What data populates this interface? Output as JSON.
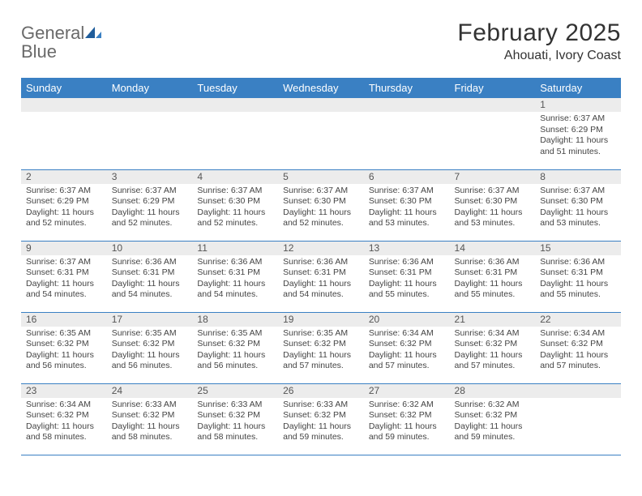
{
  "logo": {
    "word1": "General",
    "word2": "Blue"
  },
  "title": "February 2025",
  "location": "Ahouati, Ivory Coast",
  "colors": {
    "header_bg": "#3a80c3",
    "header_text": "#ffffff",
    "daynum_bg": "#ececec",
    "border": "#3a80c3",
    "logo_gray": "#6a6a6a",
    "logo_blue": "#2f6fb0"
  },
  "daysOfWeek": [
    "Sunday",
    "Monday",
    "Tuesday",
    "Wednesday",
    "Thursday",
    "Friday",
    "Saturday"
  ],
  "weeks": [
    [
      {
        "num": "",
        "text": ""
      },
      {
        "num": "",
        "text": ""
      },
      {
        "num": "",
        "text": ""
      },
      {
        "num": "",
        "text": ""
      },
      {
        "num": "",
        "text": ""
      },
      {
        "num": "",
        "text": ""
      },
      {
        "num": "1",
        "text": "Sunrise: 6:37 AM\nSunset: 6:29 PM\nDaylight: 11 hours and 51 minutes."
      }
    ],
    [
      {
        "num": "2",
        "text": "Sunrise: 6:37 AM\nSunset: 6:29 PM\nDaylight: 11 hours and 52 minutes."
      },
      {
        "num": "3",
        "text": "Sunrise: 6:37 AM\nSunset: 6:29 PM\nDaylight: 11 hours and 52 minutes."
      },
      {
        "num": "4",
        "text": "Sunrise: 6:37 AM\nSunset: 6:30 PM\nDaylight: 11 hours and 52 minutes."
      },
      {
        "num": "5",
        "text": "Sunrise: 6:37 AM\nSunset: 6:30 PM\nDaylight: 11 hours and 52 minutes."
      },
      {
        "num": "6",
        "text": "Sunrise: 6:37 AM\nSunset: 6:30 PM\nDaylight: 11 hours and 53 minutes."
      },
      {
        "num": "7",
        "text": "Sunrise: 6:37 AM\nSunset: 6:30 PM\nDaylight: 11 hours and 53 minutes."
      },
      {
        "num": "8",
        "text": "Sunrise: 6:37 AM\nSunset: 6:30 PM\nDaylight: 11 hours and 53 minutes."
      }
    ],
    [
      {
        "num": "9",
        "text": "Sunrise: 6:37 AM\nSunset: 6:31 PM\nDaylight: 11 hours and 54 minutes."
      },
      {
        "num": "10",
        "text": "Sunrise: 6:36 AM\nSunset: 6:31 PM\nDaylight: 11 hours and 54 minutes."
      },
      {
        "num": "11",
        "text": "Sunrise: 6:36 AM\nSunset: 6:31 PM\nDaylight: 11 hours and 54 minutes."
      },
      {
        "num": "12",
        "text": "Sunrise: 6:36 AM\nSunset: 6:31 PM\nDaylight: 11 hours and 54 minutes."
      },
      {
        "num": "13",
        "text": "Sunrise: 6:36 AM\nSunset: 6:31 PM\nDaylight: 11 hours and 55 minutes."
      },
      {
        "num": "14",
        "text": "Sunrise: 6:36 AM\nSunset: 6:31 PM\nDaylight: 11 hours and 55 minutes."
      },
      {
        "num": "15",
        "text": "Sunrise: 6:36 AM\nSunset: 6:31 PM\nDaylight: 11 hours and 55 minutes."
      }
    ],
    [
      {
        "num": "16",
        "text": "Sunrise: 6:35 AM\nSunset: 6:32 PM\nDaylight: 11 hours and 56 minutes."
      },
      {
        "num": "17",
        "text": "Sunrise: 6:35 AM\nSunset: 6:32 PM\nDaylight: 11 hours and 56 minutes."
      },
      {
        "num": "18",
        "text": "Sunrise: 6:35 AM\nSunset: 6:32 PM\nDaylight: 11 hours and 56 minutes."
      },
      {
        "num": "19",
        "text": "Sunrise: 6:35 AM\nSunset: 6:32 PM\nDaylight: 11 hours and 57 minutes."
      },
      {
        "num": "20",
        "text": "Sunrise: 6:34 AM\nSunset: 6:32 PM\nDaylight: 11 hours and 57 minutes."
      },
      {
        "num": "21",
        "text": "Sunrise: 6:34 AM\nSunset: 6:32 PM\nDaylight: 11 hours and 57 minutes."
      },
      {
        "num": "22",
        "text": "Sunrise: 6:34 AM\nSunset: 6:32 PM\nDaylight: 11 hours and 57 minutes."
      }
    ],
    [
      {
        "num": "23",
        "text": "Sunrise: 6:34 AM\nSunset: 6:32 PM\nDaylight: 11 hours and 58 minutes."
      },
      {
        "num": "24",
        "text": "Sunrise: 6:33 AM\nSunset: 6:32 PM\nDaylight: 11 hours and 58 minutes."
      },
      {
        "num": "25",
        "text": "Sunrise: 6:33 AM\nSunset: 6:32 PM\nDaylight: 11 hours and 58 minutes."
      },
      {
        "num": "26",
        "text": "Sunrise: 6:33 AM\nSunset: 6:32 PM\nDaylight: 11 hours and 59 minutes."
      },
      {
        "num": "27",
        "text": "Sunrise: 6:32 AM\nSunset: 6:32 PM\nDaylight: 11 hours and 59 minutes."
      },
      {
        "num": "28",
        "text": "Sunrise: 6:32 AM\nSunset: 6:32 PM\nDaylight: 11 hours and 59 minutes."
      },
      {
        "num": "",
        "text": ""
      }
    ]
  ]
}
